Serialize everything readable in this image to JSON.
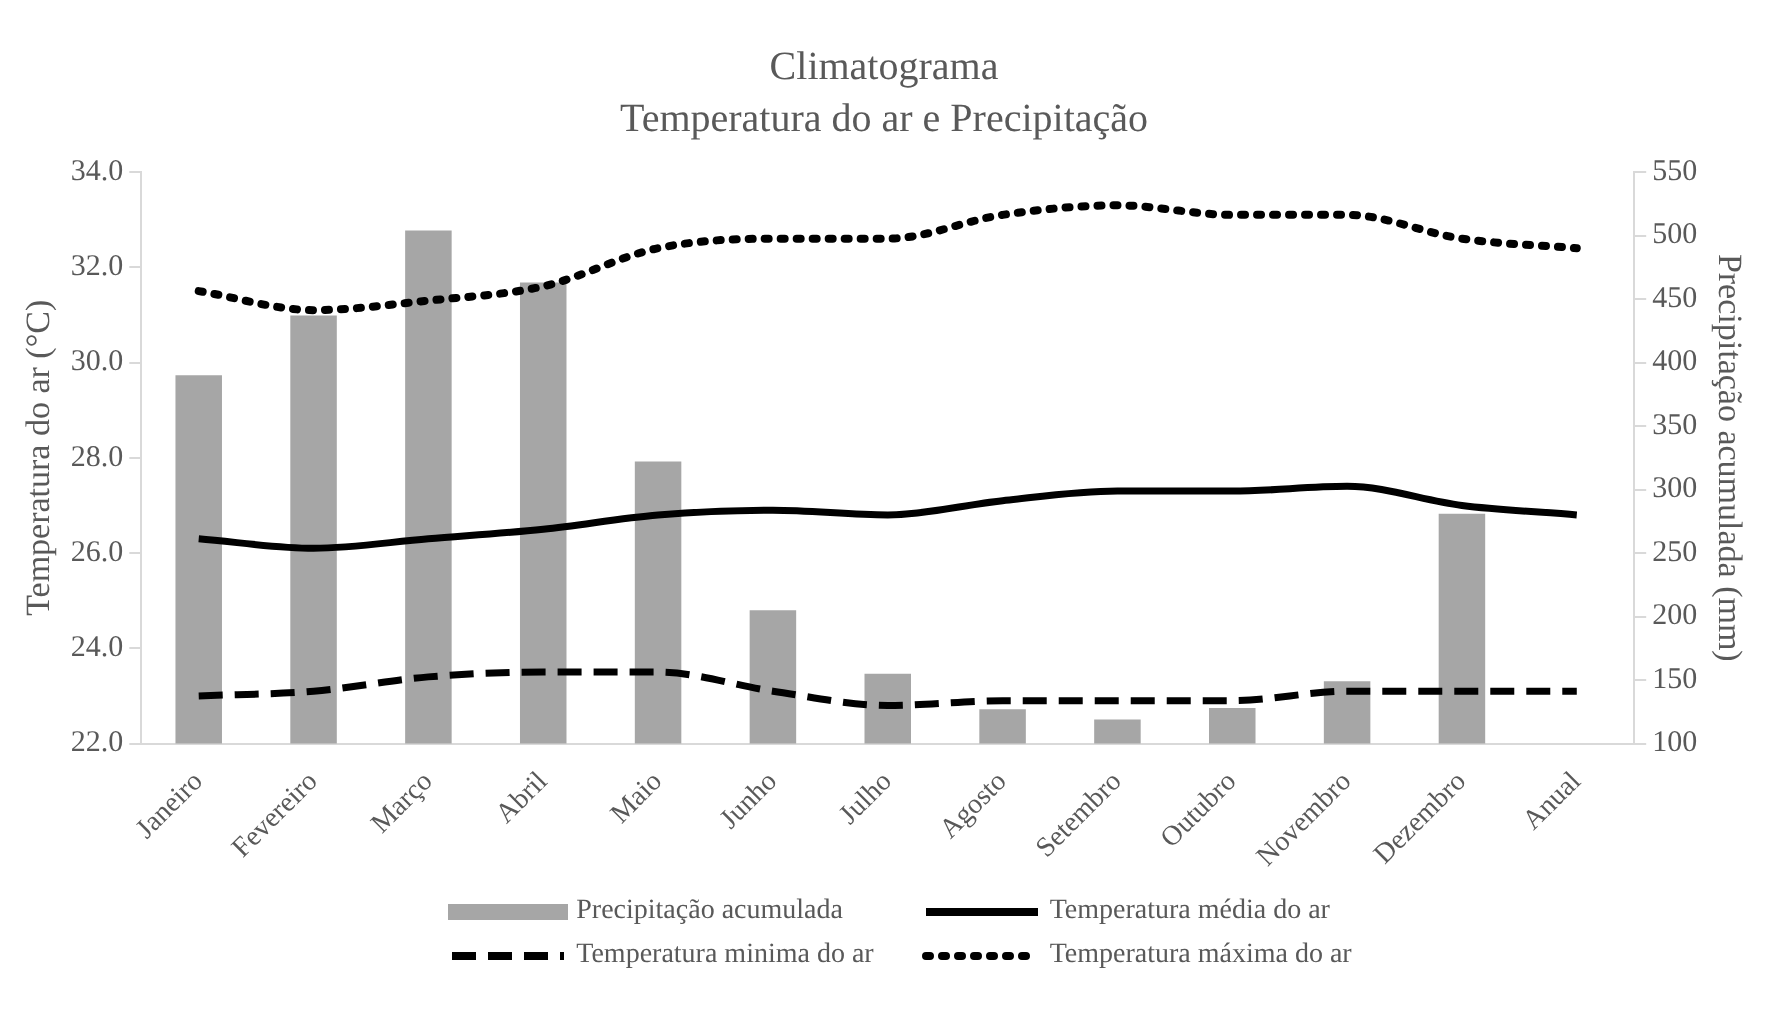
{
  "chart_data": {
    "type": "bar",
    "title": "Climatograma",
    "subtitle": "Temperatura do ar e Precipitação",
    "ylabel": "Temperatura do ar (°C)",
    "y2label": "Precipitação acumulada (mm)",
    "categories": [
      "Janeiro",
      "Fevereiro",
      "Março",
      "Abril",
      "Maio",
      "Junho",
      "Julho",
      "Agosto",
      "Setembro",
      "Outubro",
      "Novembro",
      "Dezembro",
      "Anual"
    ],
    "series": [
      {
        "name": "Precipitação acumulada",
        "axis": "y2",
        "color": "#a6a6a6",
        "values": [
          390,
          437,
          504,
          463,
          322,
          205,
          155,
          127,
          119,
          128,
          149,
          281,
          null
        ]
      },
      {
        "name": "Temperatura média do ar",
        "type": "line",
        "line_style": "solid",
        "color": "#000000",
        "values": [
          26.3,
          26.1,
          26.3,
          26.5,
          26.8,
          26.9,
          26.8,
          27.1,
          27.3,
          27.3,
          27.4,
          27.0,
          26.8
        ]
      },
      {
        "name": "Temperatura minima do ar",
        "type": "line",
        "line_style": "dashed",
        "color": "#000000",
        "values": [
          23.0,
          23.1,
          23.4,
          23.5,
          23.5,
          23.1,
          22.8,
          22.9,
          22.9,
          22.9,
          23.1,
          23.1,
          23.1
        ]
      },
      {
        "name": "Temperatura máxima do ar",
        "type": "line",
        "line_style": "dotted",
        "color": "#000000",
        "values": [
          31.5,
          31.1,
          31.3,
          31.6,
          32.4,
          32.6,
          32.6,
          33.1,
          33.3,
          33.1,
          33.1,
          32.6,
          32.4
        ]
      }
    ],
    "ylim": [
      22,
      34
    ],
    "yticks": [
      {
        "value": 22,
        "label": "22.0"
      },
      {
        "value": 24,
        "label": "24.0"
      },
      {
        "value": 26,
        "label": "26.0"
      },
      {
        "value": 28,
        "label": "28.0"
      },
      {
        "value": 30,
        "label": "30.0"
      },
      {
        "value": 32,
        "label": "32.0"
      },
      {
        "value": 34,
        "label": "34.0"
      }
    ],
    "y2lim": [
      100,
      550
    ],
    "y2ticks": [
      100,
      150,
      200,
      250,
      300,
      350,
      400,
      450,
      500,
      550
    ],
    "legend": "bottom"
  }
}
